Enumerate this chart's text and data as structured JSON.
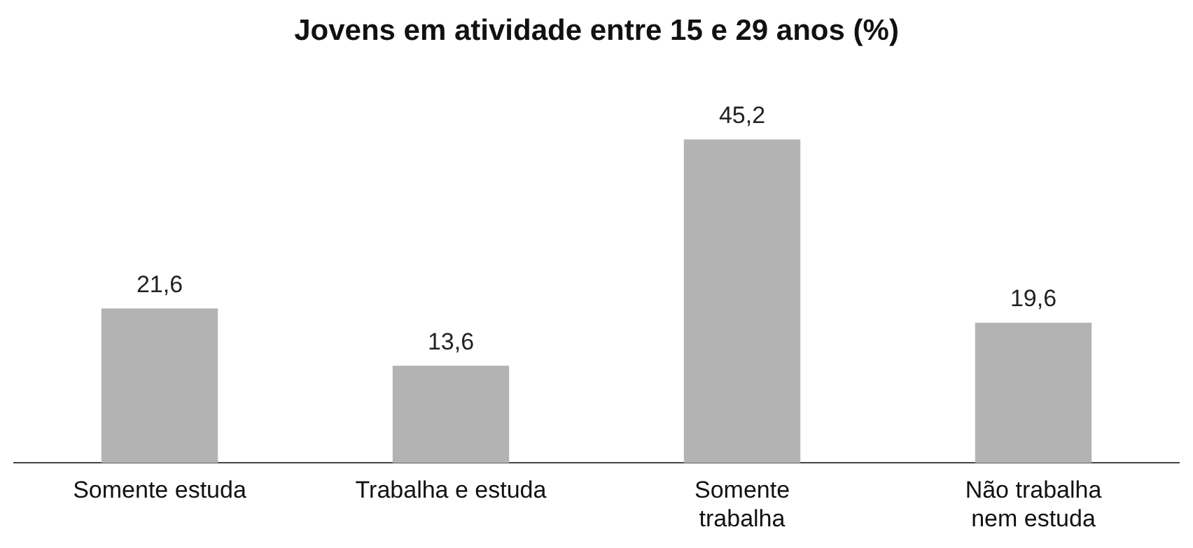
{
  "chart_data": {
    "type": "bar",
    "title": "Jovens em atividade entre 15 e 29 anos (%)",
    "categories": [
      "Somente estuda",
      "Trabalha e estuda",
      "Somente\ntrabalha",
      "Não trabalha\nnem estuda"
    ],
    "values": [
      21.6,
      13.6,
      45.2,
      19.6
    ],
    "value_labels": [
      "21,6",
      "13,6",
      "45,2",
      "19,6"
    ],
    "color": "#b3b3b3",
    "grid": false,
    "legend": false
  }
}
